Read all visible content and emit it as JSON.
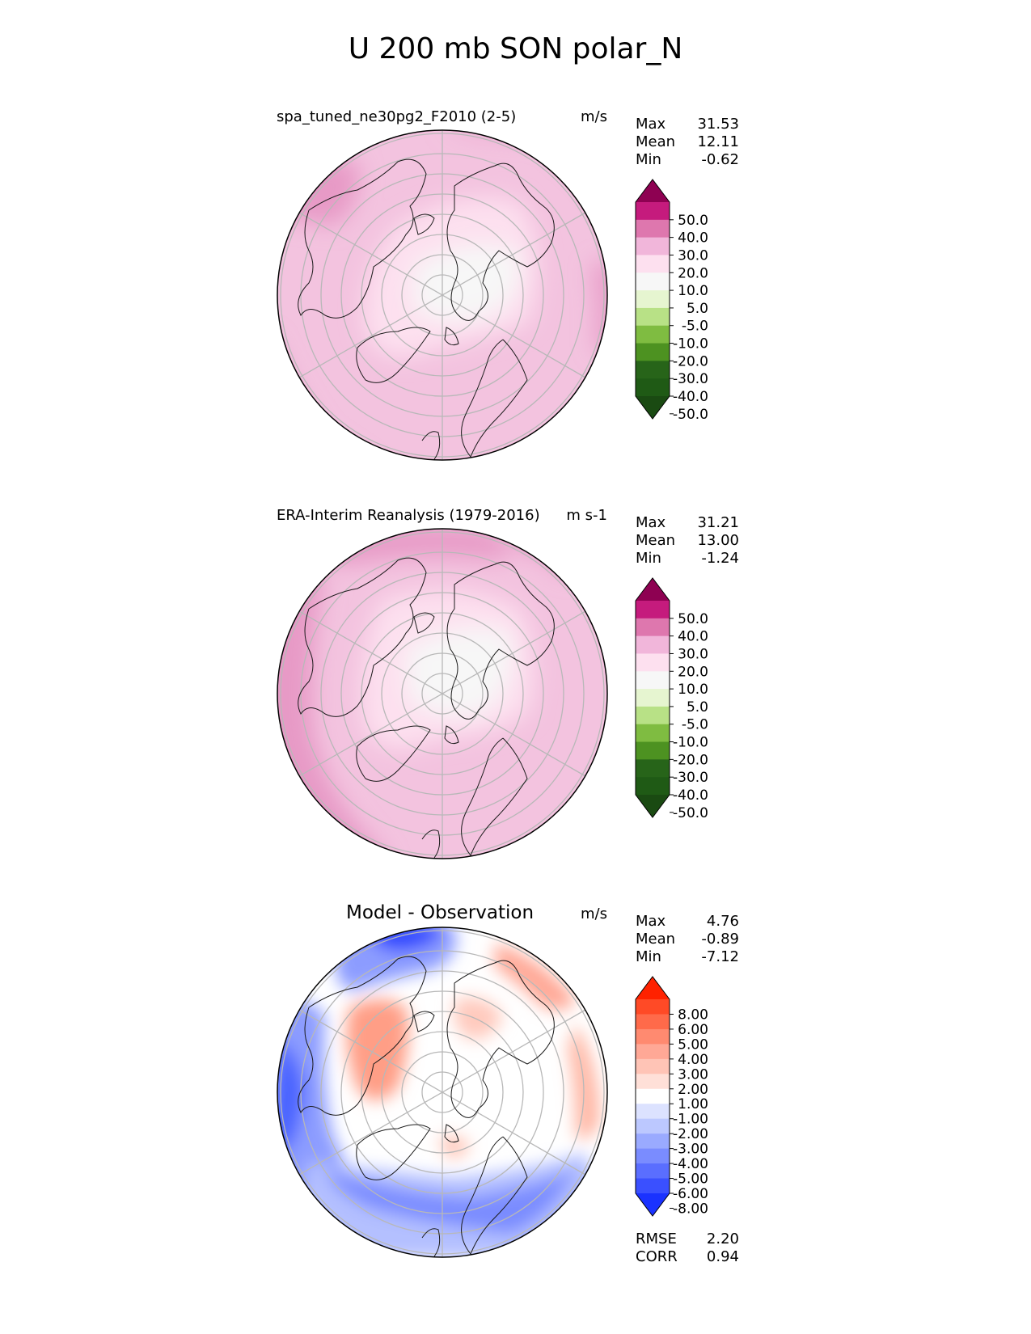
{
  "title": "U 200 mb SON polar_N",
  "chart_data": [
    {
      "type": "heatmap",
      "projection": "north-polar-stereographic",
      "title": "spa_tuned_ne30pg2_F2010 (2-5)",
      "units": "m/s",
      "stats": [
        {
          "label": "Max",
          "value": "31.53"
        },
        {
          "label": "Mean",
          "value": "12.11"
        },
        {
          "label": "Min",
          "value": "-0.62"
        }
      ],
      "colorbar": {
        "levels": [
          "50.0",
          "40.0",
          "30.0",
          "20.0",
          "10.0",
          "5.0",
          "-5.0",
          "-10.0",
          "-20.0",
          "-30.0",
          "-40.0",
          "-50.0"
        ],
        "colors": [
          "#8e0152",
          "#c51b7d",
          "#de77ae",
          "#f1b6da",
          "#fde0ef",
          "#f7f7f7",
          "#e6f5d0",
          "#b8e186",
          "#7fbc41",
          "#4d9221",
          "#276419",
          "#1f5a15",
          "#1a4a12"
        ]
      }
    },
    {
      "type": "heatmap",
      "projection": "north-polar-stereographic",
      "title": "ERA-Interim Reanalysis (1979-2016)",
      "units": "m s-1",
      "stats": [
        {
          "label": "Max",
          "value": "31.21"
        },
        {
          "label": "Mean",
          "value": "13.00"
        },
        {
          "label": "Min",
          "value": "-1.24"
        }
      ],
      "colorbar": {
        "levels": [
          "50.0",
          "40.0",
          "30.0",
          "20.0",
          "10.0",
          "5.0",
          "-5.0",
          "-10.0",
          "-20.0",
          "-30.0",
          "-40.0",
          "-50.0"
        ],
        "colors": [
          "#8e0152",
          "#c51b7d",
          "#de77ae",
          "#f1b6da",
          "#fde0ef",
          "#f7f7f7",
          "#e6f5d0",
          "#b8e186",
          "#7fbc41",
          "#4d9221",
          "#276419",
          "#1f5a15",
          "#1a4a12"
        ]
      }
    },
    {
      "type": "heatmap",
      "projection": "north-polar-stereographic",
      "title": "Model - Observation",
      "units": "m/s",
      "stats": [
        {
          "label": "Max",
          "value": "4.76"
        },
        {
          "label": "Mean",
          "value": "-0.89"
        },
        {
          "label": "Min",
          "value": "-7.12"
        }
      ],
      "extra_stats": [
        {
          "label": "RMSE",
          "value": "2.20"
        },
        {
          "label": "CORR",
          "value": "0.94"
        }
      ],
      "colorbar": {
        "levels": [
          "8.00",
          "6.00",
          "5.00",
          "4.00",
          "3.00",
          "2.00",
          "1.00",
          "-1.00",
          "-2.00",
          "-3.00",
          "-4.00",
          "-5.00",
          "-6.00",
          "-8.00"
        ],
        "colors": [
          "#ff2200",
          "#ff4a26",
          "#ff6a4a",
          "#ff8a70",
          "#ffa896",
          "#ffc4b6",
          "#ffe0d8",
          "#ffffff",
          "#dce2ff",
          "#bcc8ff",
          "#9aaaff",
          "#7a8cff",
          "#5a6eff",
          "#3a50ff",
          "#1a32ff"
        ]
      }
    }
  ]
}
